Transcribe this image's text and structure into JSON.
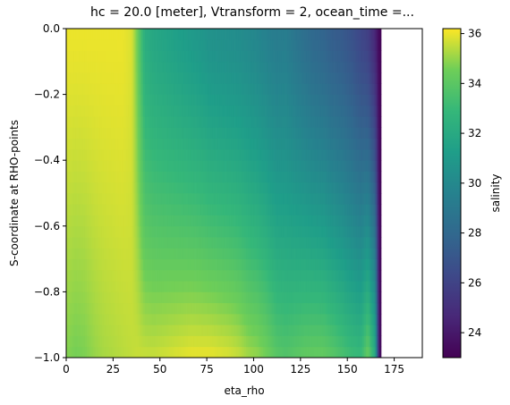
{
  "chart_data": {
    "type": "heatmap",
    "title": "hc = 20.0 [meter], Vtransform = 2, ocean_time =...",
    "xlabel": "eta_rho",
    "ylabel": "S-coordinate at RHO-points",
    "xlim": [
      0,
      190
    ],
    "ylim": [
      -1.0,
      0.0
    ],
    "x_ticks": [
      0,
      25,
      50,
      75,
      100,
      125,
      150,
      175
    ],
    "x_tick_labels": [
      "0",
      "25",
      "50",
      "75",
      "100",
      "125",
      "150",
      "175"
    ],
    "y_ticks": [
      0.0,
      -0.2,
      -0.4,
      -0.6,
      -0.8,
      -1.0
    ],
    "y_tick_labels": [
      "0.0",
      "−0.2",
      "−0.4",
      "−0.6",
      "−0.8",
      "−1.0"
    ],
    "colorbar": {
      "label": "salinity",
      "range": [
        23.0,
        36.2
      ],
      "ticks": [
        24,
        26,
        28,
        30,
        32,
        34,
        36
      ],
      "tick_labels": [
        "24",
        "26",
        "28",
        "30",
        "32",
        "34",
        "36"
      ],
      "colormap": "viridis"
    },
    "data_x_extent": [
      0,
      168
    ],
    "grid": false,
    "profiles": [
      {
        "eta": 0,
        "surface": 36.0,
        "deep": 34.8
      },
      {
        "eta": 5,
        "surface": 36.0,
        "deep": 34.6
      },
      {
        "eta": 10,
        "surface": 36.0,
        "deep": 34.7
      },
      {
        "eta": 15,
        "surface": 36.0,
        "deep": 35.0
      },
      {
        "eta": 20,
        "surface": 36.0,
        "deep": 35.2
      },
      {
        "eta": 25,
        "surface": 36.0,
        "deep": 35.3
      },
      {
        "eta": 30,
        "surface": 36.0,
        "deep": 35.4
      },
      {
        "eta": 35,
        "surface": 35.8,
        "deep": 35.5
      },
      {
        "eta": 38,
        "surface": 34.5,
        "deep": 35.6
      },
      {
        "eta": 42,
        "surface": 32.2,
        "deep": 35.6
      },
      {
        "eta": 47,
        "surface": 31.8,
        "deep": 35.6
      },
      {
        "eta": 52,
        "surface": 31.6,
        "deep": 35.7
      },
      {
        "eta": 57,
        "surface": 31.4,
        "deep": 35.8
      },
      {
        "eta": 62,
        "surface": 31.2,
        "deep": 35.9
      },
      {
        "eta": 67,
        "surface": 31.0,
        "deep": 36.0
      },
      {
        "eta": 72,
        "surface": 30.8,
        "deep": 36.0
      },
      {
        "eta": 77,
        "surface": 30.5,
        "deep": 36.0
      },
      {
        "eta": 82,
        "surface": 30.4,
        "deep": 35.9
      },
      {
        "eta": 87,
        "surface": 30.3,
        "deep": 35.8
      },
      {
        "eta": 92,
        "surface": 30.2,
        "deep": 35.6
      },
      {
        "eta": 97,
        "surface": 30.0,
        "deep": 35.2
      },
      {
        "eta": 102,
        "surface": 29.8,
        "deep": 35.0
      },
      {
        "eta": 107,
        "surface": 29.5,
        "deep": 34.6
      },
      {
        "eta": 112,
        "surface": 29.2,
        "deep": 34.0
      },
      {
        "eta": 117,
        "surface": 29.3,
        "deep": 33.8
      },
      {
        "eta": 122,
        "surface": 28.8,
        "deep": 34.0
      },
      {
        "eta": 127,
        "surface": 28.4,
        "deep": 34.2
      },
      {
        "eta": 132,
        "surface": 28.0,
        "deep": 34.3
      },
      {
        "eta": 137,
        "surface": 27.8,
        "deep": 34.3
      },
      {
        "eta": 142,
        "surface": 27.4,
        "deep": 34.0
      },
      {
        "eta": 147,
        "surface": 27.2,
        "deep": 33.6
      },
      {
        "eta": 152,
        "surface": 26.8,
        "deep": 33.2
      },
      {
        "eta": 157,
        "surface": 26.2,
        "deep": 33.0
      },
      {
        "eta": 161,
        "surface": 25.8,
        "deep": 34.4
      },
      {
        "eta": 165,
        "surface": 24.5,
        "deep": 32.0
      },
      {
        "eta": 167,
        "surface": 23.2,
        "deep": 23.5
      }
    ]
  }
}
